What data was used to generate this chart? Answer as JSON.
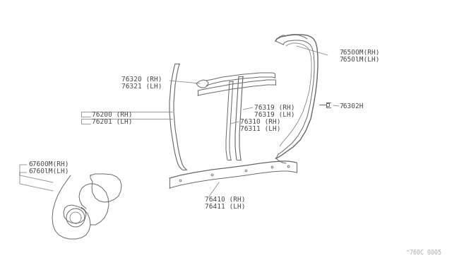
{
  "bg_color": "#ffffff",
  "line_color": "#666666",
  "text_color": "#444444",
  "watermark": "^760C 0005",
  "lw_main": 0.9,
  "lw_thin": 0.7,
  "label_fs": 6.8,
  "parts": {
    "76320_label": "76320 (RH)\n76321 (LH)",
    "76500_label": "76500M(RH)\n7650lM(LH)",
    "76302_label": "76302H",
    "76319_label": "76319 (RH)\n76319 (LH)",
    "76310_label": "76310 (RH)\n76311 (LH)",
    "76200_label": "76200 (RH)\n76201 (LH)",
    "67600_label": "67600M(RH)\n6760lM(LH)",
    "76410_label": "76410 (RH)\n76411 (LH)"
  }
}
